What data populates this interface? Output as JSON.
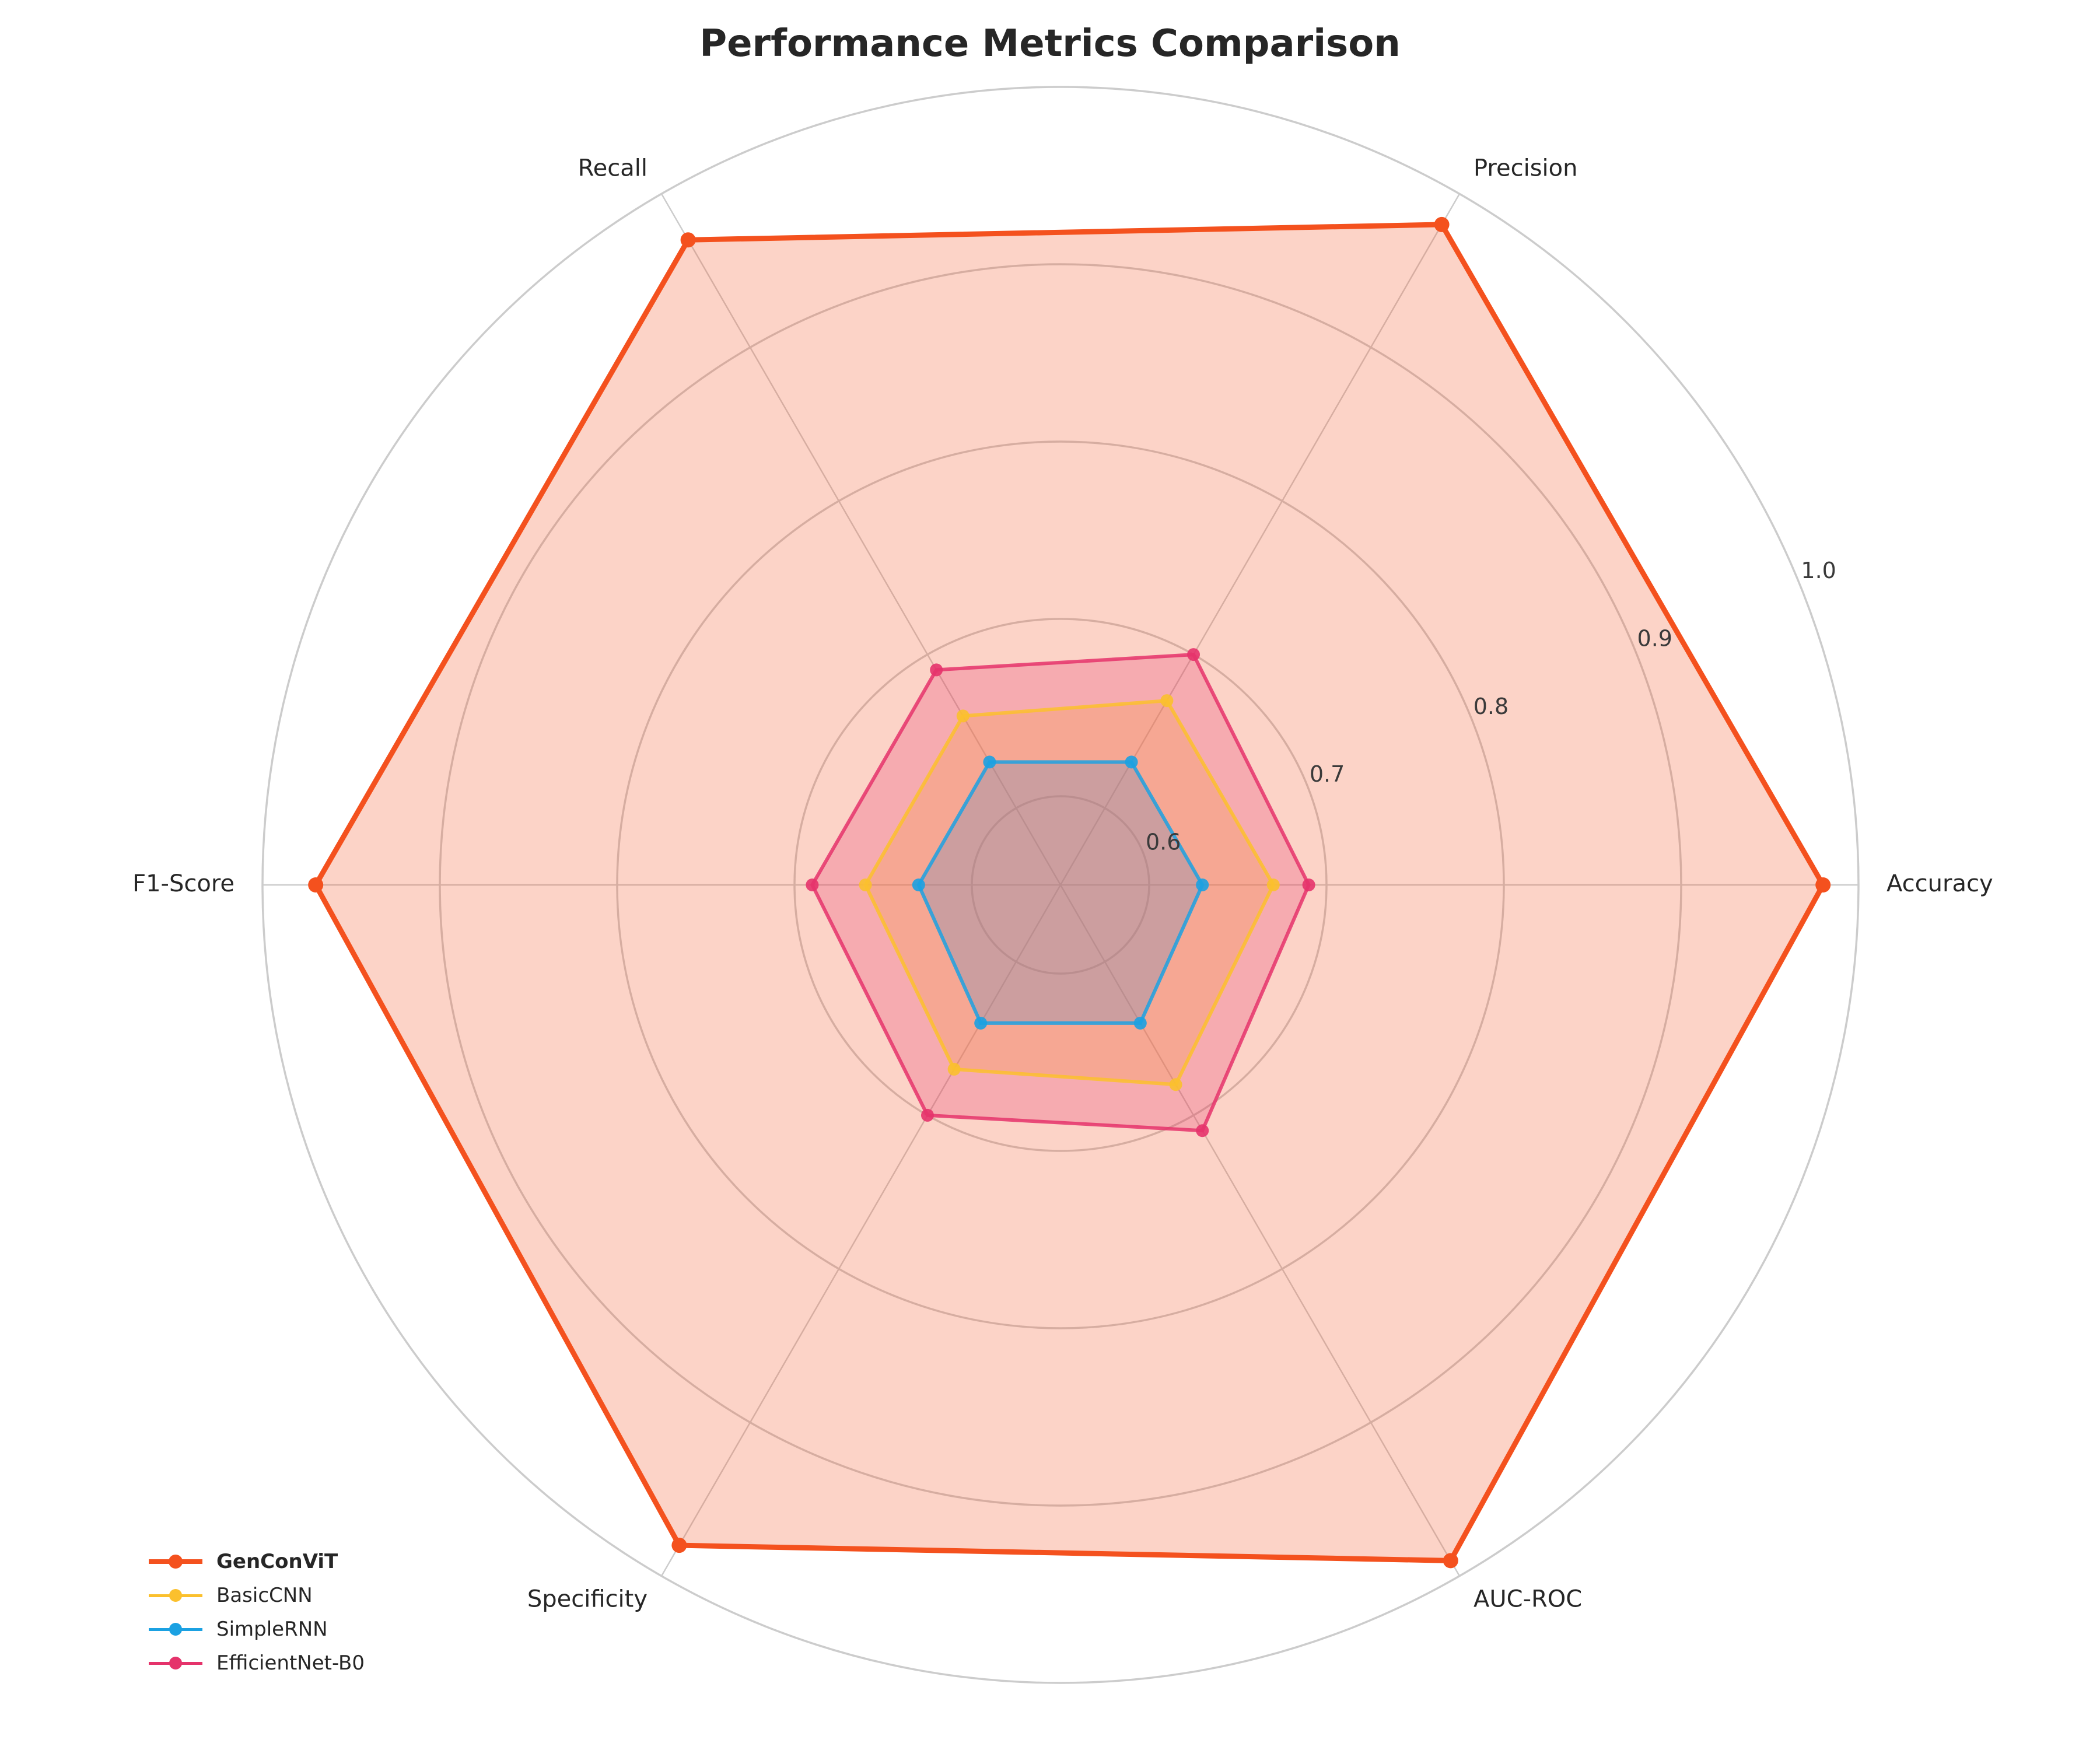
{
  "chart_data": {
    "type": "radar",
    "title": "Performance Metrics Comparison",
    "axes": [
      "Accuracy",
      "Precision",
      "Recall",
      "F1-Score",
      "Specificity",
      "AUC-ROC"
    ],
    "radial_range": [
      0.55,
      1.0
    ],
    "radial_ticks": [
      0.6,
      0.7,
      0.8,
      0.9,
      1.0
    ],
    "radial_tick_labels": [
      "0.6",
      "0.7",
      "0.8",
      "0.9",
      "1.0"
    ],
    "grid": true,
    "legend_position": "bottom-left",
    "series": [
      {
        "name": "GenConViT",
        "values": [
          0.98,
          0.98,
          0.97,
          0.97,
          0.98,
          0.99
        ],
        "color": "#f4511e",
        "emphasis": true
      },
      {
        "name": "BasicCNN",
        "values": [
          0.67,
          0.67,
          0.66,
          0.66,
          0.67,
          0.68
        ],
        "color": "#fbc02d",
        "emphasis": false
      },
      {
        "name": "SimpleRNN",
        "values": [
          0.63,
          0.63,
          0.63,
          0.63,
          0.64,
          0.64
        ],
        "color": "#1ba1e2",
        "emphasis": false
      },
      {
        "name": "EfficientNet-B0",
        "values": [
          0.69,
          0.7,
          0.69,
          0.69,
          0.7,
          0.71
        ],
        "color": "#e5336b",
        "emphasis": false
      }
    ]
  }
}
